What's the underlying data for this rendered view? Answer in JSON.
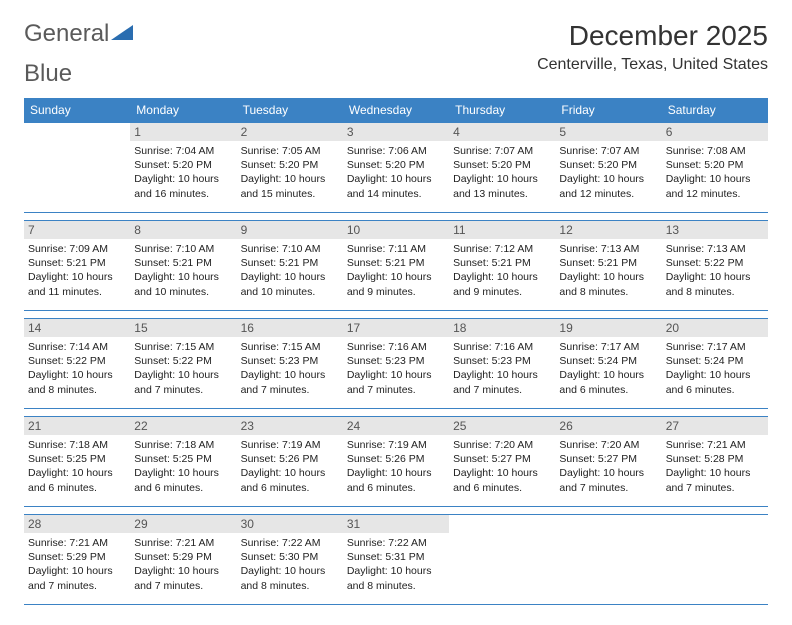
{
  "logo": {
    "part1": "General",
    "part2": "Blue"
  },
  "title": "December 2025",
  "location": "Centerville, Texas, United States",
  "colors": {
    "header_bg": "#3b82c4",
    "header_text": "#ffffff",
    "daynum_bg": "#e6e6e6",
    "daynum_text": "#555555",
    "body_text": "#222222",
    "border": "#3b82c4",
    "logo_gray": "#5a5a5a",
    "logo_blue": "#2a6db0"
  },
  "day_labels": [
    "Sunday",
    "Monday",
    "Tuesday",
    "Wednesday",
    "Thursday",
    "Friday",
    "Saturday"
  ],
  "weeks": [
    [
      null,
      {
        "n": "1",
        "sr": "7:04 AM",
        "ss": "5:20 PM",
        "dl": "10 hours and 16 minutes."
      },
      {
        "n": "2",
        "sr": "7:05 AM",
        "ss": "5:20 PM",
        "dl": "10 hours and 15 minutes."
      },
      {
        "n": "3",
        "sr": "7:06 AM",
        "ss": "5:20 PM",
        "dl": "10 hours and 14 minutes."
      },
      {
        "n": "4",
        "sr": "7:07 AM",
        "ss": "5:20 PM",
        "dl": "10 hours and 13 minutes."
      },
      {
        "n": "5",
        "sr": "7:07 AM",
        "ss": "5:20 PM",
        "dl": "10 hours and 12 minutes."
      },
      {
        "n": "6",
        "sr": "7:08 AM",
        "ss": "5:20 PM",
        "dl": "10 hours and 12 minutes."
      }
    ],
    [
      {
        "n": "7",
        "sr": "7:09 AM",
        "ss": "5:21 PM",
        "dl": "10 hours and 11 minutes."
      },
      {
        "n": "8",
        "sr": "7:10 AM",
        "ss": "5:21 PM",
        "dl": "10 hours and 10 minutes."
      },
      {
        "n": "9",
        "sr": "7:10 AM",
        "ss": "5:21 PM",
        "dl": "10 hours and 10 minutes."
      },
      {
        "n": "10",
        "sr": "7:11 AM",
        "ss": "5:21 PM",
        "dl": "10 hours and 9 minutes."
      },
      {
        "n": "11",
        "sr": "7:12 AM",
        "ss": "5:21 PM",
        "dl": "10 hours and 9 minutes."
      },
      {
        "n": "12",
        "sr": "7:13 AM",
        "ss": "5:21 PM",
        "dl": "10 hours and 8 minutes."
      },
      {
        "n": "13",
        "sr": "7:13 AM",
        "ss": "5:22 PM",
        "dl": "10 hours and 8 minutes."
      }
    ],
    [
      {
        "n": "14",
        "sr": "7:14 AM",
        "ss": "5:22 PM",
        "dl": "10 hours and 8 minutes."
      },
      {
        "n": "15",
        "sr": "7:15 AM",
        "ss": "5:22 PM",
        "dl": "10 hours and 7 minutes."
      },
      {
        "n": "16",
        "sr": "7:15 AM",
        "ss": "5:23 PM",
        "dl": "10 hours and 7 minutes."
      },
      {
        "n": "17",
        "sr": "7:16 AM",
        "ss": "5:23 PM",
        "dl": "10 hours and 7 minutes."
      },
      {
        "n": "18",
        "sr": "7:16 AM",
        "ss": "5:23 PM",
        "dl": "10 hours and 7 minutes."
      },
      {
        "n": "19",
        "sr": "7:17 AM",
        "ss": "5:24 PM",
        "dl": "10 hours and 6 minutes."
      },
      {
        "n": "20",
        "sr": "7:17 AM",
        "ss": "5:24 PM",
        "dl": "10 hours and 6 minutes."
      }
    ],
    [
      {
        "n": "21",
        "sr": "7:18 AM",
        "ss": "5:25 PM",
        "dl": "10 hours and 6 minutes."
      },
      {
        "n": "22",
        "sr": "7:18 AM",
        "ss": "5:25 PM",
        "dl": "10 hours and 6 minutes."
      },
      {
        "n": "23",
        "sr": "7:19 AM",
        "ss": "5:26 PM",
        "dl": "10 hours and 6 minutes."
      },
      {
        "n": "24",
        "sr": "7:19 AM",
        "ss": "5:26 PM",
        "dl": "10 hours and 6 minutes."
      },
      {
        "n": "25",
        "sr": "7:20 AM",
        "ss": "5:27 PM",
        "dl": "10 hours and 6 minutes."
      },
      {
        "n": "26",
        "sr": "7:20 AM",
        "ss": "5:27 PM",
        "dl": "10 hours and 7 minutes."
      },
      {
        "n": "27",
        "sr": "7:21 AM",
        "ss": "5:28 PM",
        "dl": "10 hours and 7 minutes."
      }
    ],
    [
      {
        "n": "28",
        "sr": "7:21 AM",
        "ss": "5:29 PM",
        "dl": "10 hours and 7 minutes."
      },
      {
        "n": "29",
        "sr": "7:21 AM",
        "ss": "5:29 PM",
        "dl": "10 hours and 7 minutes."
      },
      {
        "n": "30",
        "sr": "7:22 AM",
        "ss": "5:30 PM",
        "dl": "10 hours and 8 minutes."
      },
      {
        "n": "31",
        "sr": "7:22 AM",
        "ss": "5:31 PM",
        "dl": "10 hours and 8 minutes."
      },
      null,
      null,
      null
    ]
  ],
  "labels": {
    "sunrise": "Sunrise:",
    "sunset": "Sunset:",
    "daylight": "Daylight:"
  }
}
